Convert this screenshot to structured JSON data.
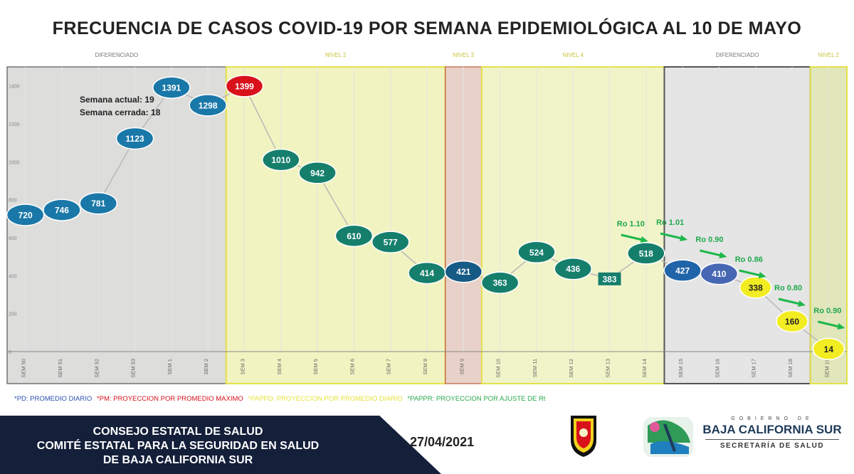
{
  "header": {
    "title": "FRECUENCIA DE CASOS COVID-19 POR SEMANA EPIDEMIOLÓGICA AL 10 DE MAYO"
  },
  "chart_data": {
    "type": "line",
    "y_ticks": [
      "0",
      "200",
      "400",
      "600",
      "800",
      "1000",
      "1200",
      "1400"
    ],
    "ylim": [
      0,
      1500
    ],
    "categories": [
      "SEM 50",
      "SEM 51",
      "SEM 52",
      "SEM 53",
      "SEM 1",
      "SEM 2",
      "SEM 3",
      "SEM 4",
      "SEM 5",
      "SEM 6",
      "SEM 7",
      "SEM 8",
      "SEM 9",
      "SEM 10",
      "SEM 11",
      "SEM 12",
      "SEM 13",
      "SEM 14",
      "SEM 15",
      "SEM 16",
      "SEM 17",
      "SEM 18",
      "SEM 19"
    ],
    "values": [
      720,
      746,
      781,
      1123,
      1391,
      1298,
      1399,
      1010,
      942,
      610,
      577,
      414,
      421,
      363,
      524,
      436,
      383,
      518,
      427,
      410,
      338,
      160,
      14
    ],
    "marker_colors": [
      "#1a78a8",
      "#1a78a8",
      "#1a78a8",
      "#1a78a8",
      "#1a78a8",
      "#1a78a8",
      "#d8111b",
      "#157f6c",
      "#157f6c",
      "#157f6c",
      "#157f6c",
      "#157f6c",
      "#165a86",
      "#157f6c",
      "#157f6c",
      "#157f6c",
      "#157f6c",
      "#157f6c",
      "#1f64a9",
      "#4767b4",
      "#f2ec22",
      "#f2ec22",
      "#f2ec22"
    ],
    "annotation_lines": [
      "Semana actual: 19",
      "Semana cerrada: 18"
    ],
    "zones": [
      {
        "label": "DIFERENCIADO",
        "from": 0,
        "to": 5,
        "color": "#c9c9c9"
      },
      {
        "label": "NIVEL 2",
        "from": 6,
        "to": 11,
        "color": "#ecf098"
      },
      {
        "label": "NIVEL 3",
        "from": 12,
        "to": 12,
        "color": "#ddb3a4"
      },
      {
        "label": "NIVEL 4",
        "from": 13,
        "to": 17,
        "color": "#edf3a6"
      },
      {
        "label": "DIFERENCIADO",
        "from": 18,
        "to": 21,
        "color": "#d7d7da"
      },
      {
        "label": "NIVEL 2",
        "from": 22,
        "to": 22,
        "color": "#cfd98c"
      }
    ],
    "rt_labels": [
      "Ro 1.10",
      "Ro 1.01",
      "Ro 0.90",
      "Ro 0.86",
      "Ro 0.80",
      "Ro 0.90"
    ]
  },
  "legend": {
    "items": [
      {
        "text": "*PD: PROMEDIO DIARIO",
        "color": "#2a4fb0"
      },
      {
        "text": "*PM: PROYECCION POR PROMEDIO MAXIMO",
        "color": "#d8111b"
      },
      {
        "text": "*PAPPD: PROYECCION POR PROMEDIO DIARIO",
        "color": "#e6e23a"
      },
      {
        "text": "*PAPPR: PROYECCION POR AJUSTE DE Rt",
        "color": "#2aa84a"
      }
    ]
  },
  "footer": {
    "line1": "CONSEJO ESTATAL DE SALUD",
    "line2": "COMITÉ ESTATAL PARA LA SEGURIDAD EN SALUD",
    "line3": "DE BAJA CALIFORNIA SUR",
    "date": "27/04/2021",
    "gov_top": "GOBIERNO DE",
    "gov_main": "BAJA CALIFORNIA SUR",
    "gov_sub": "SECRETARÍA DE SALUD"
  }
}
